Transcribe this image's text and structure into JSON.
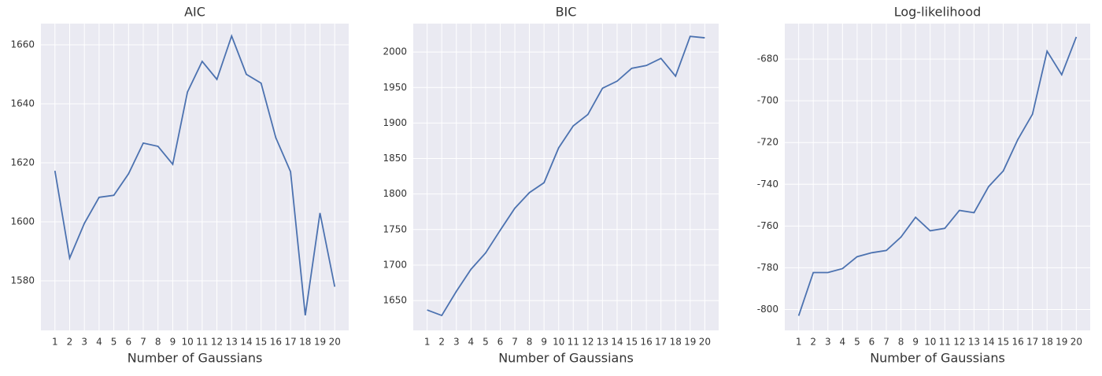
{
  "chart_data": [
    {
      "type": "line",
      "title": "AIC",
      "xlabel": "Number of Gaussians",
      "x": [
        1,
        2,
        3,
        4,
        5,
        6,
        7,
        8,
        9,
        10,
        11,
        12,
        13,
        14,
        15,
        16,
        17,
        18,
        19,
        20
      ],
      "series": [
        {
          "name": "AIC",
          "color": "#4c72b0",
          "values": [
            1617.3,
            1587.7,
            1599.5,
            1608.3,
            1609,
            1616.3,
            1626.7,
            1625.6,
            1619.5,
            1644,
            1654.4,
            1648.3,
            1663,
            1650,
            1647,
            1628.5,
            1617,
            1568.3,
            1603,
            1578
          ]
        }
      ],
      "xlim": [
        0.05,
        20.95
      ],
      "xticks": [
        1,
        2,
        3,
        4,
        5,
        6,
        7,
        8,
        9,
        10,
        11,
        12,
        13,
        14,
        15,
        16,
        17,
        18,
        19,
        20
      ],
      "ylim": [
        1563.2,
        1667.2
      ],
      "yticks": [
        1580,
        1600,
        1620,
        1640,
        1660
      ],
      "grid": true
    },
    {
      "type": "line",
      "title": "BIC",
      "xlabel": "Number of Gaussians",
      "x": [
        1,
        2,
        3,
        4,
        5,
        6,
        7,
        8,
        9,
        10,
        11,
        12,
        13,
        14,
        15,
        16,
        17,
        18,
        19,
        20
      ],
      "series": [
        {
          "name": "BIC",
          "color": "#4c72b0",
          "values": [
            1636.7,
            1629,
            1663,
            1694,
            1717,
            1749,
            1780,
            1802,
            1816,
            1865,
            1896,
            1912,
            1949,
            1959,
            1977,
            1981,
            1991,
            1966,
            2022,
            2020
          ]
        }
      ],
      "xlim": [
        0.05,
        20.95
      ],
      "xticks": [
        1,
        2,
        3,
        4,
        5,
        6,
        7,
        8,
        9,
        10,
        11,
        12,
        13,
        14,
        15,
        16,
        17,
        18,
        19,
        20
      ],
      "ylim": [
        1608,
        2040
      ],
      "yticks": [
        1650,
        1700,
        1750,
        1800,
        1850,
        1900,
        1950,
        2000
      ],
      "grid": true
    },
    {
      "type": "line",
      "title": "Log-likelihood",
      "xlabel": "Number of Gaussians",
      "x": [
        1,
        2,
        3,
        4,
        5,
        6,
        7,
        8,
        9,
        10,
        11,
        12,
        13,
        14,
        15,
        16,
        17,
        18,
        19,
        20
      ],
      "series": [
        {
          "name": "Log-likelihood",
          "color": "#4c72b0",
          "values": [
            -803,
            -782.3,
            -782.3,
            -780.4,
            -774.7,
            -772.8,
            -771.7,
            -765.3,
            -755.8,
            -762.3,
            -761.1,
            -752.5,
            -753.6,
            -741.1,
            -733.6,
            -718.5,
            -706.4,
            -676.2,
            -687.5,
            -669.4
          ]
        }
      ],
      "xlim": [
        0.05,
        20.95
      ],
      "xticks": [
        1,
        2,
        3,
        4,
        5,
        6,
        7,
        8,
        9,
        10,
        11,
        12,
        13,
        14,
        15,
        16,
        17,
        18,
        19,
        20
      ],
      "ylim": [
        -810,
        -663
      ],
      "yticks": [
        -800,
        -780,
        -760,
        -740,
        -720,
        -700,
        -680
      ],
      "grid": true
    }
  ]
}
